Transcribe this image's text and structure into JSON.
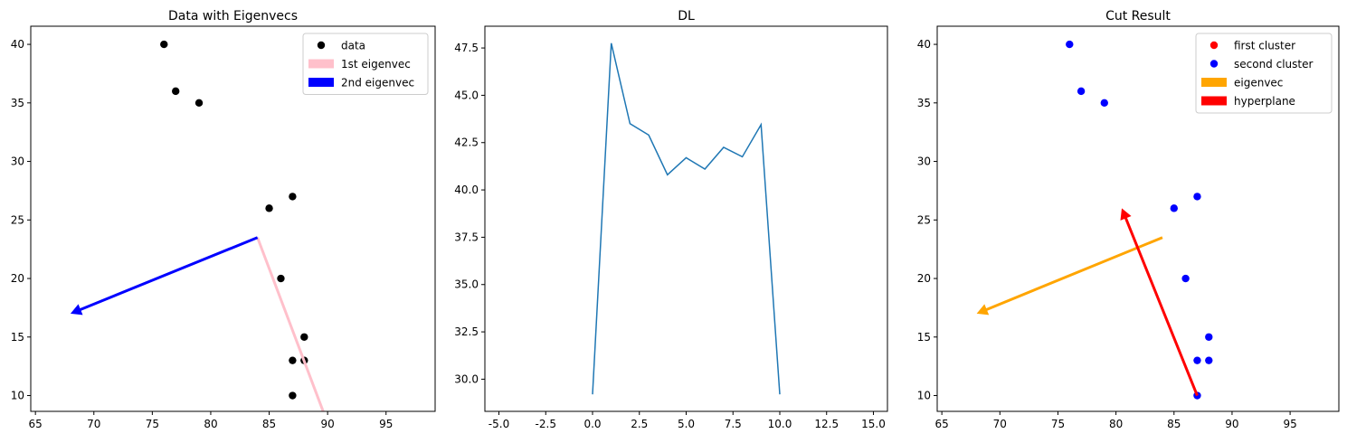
{
  "chart_data": [
    {
      "type": "scatter",
      "title": "Data with Eigenvecs",
      "xlim": [
        64.6,
        99.2
      ],
      "ylim": [
        8.65,
        41.55
      ],
      "xticks": [
        65,
        70,
        75,
        80,
        85,
        90,
        95
      ],
      "yticks": [
        10,
        15,
        20,
        25,
        30,
        35,
        40
      ],
      "legend_loc": "upper right",
      "series": [
        {
          "name": "data",
          "kind": "points",
          "color": "#000000",
          "points": [
            [
              76,
              40
            ],
            [
              77,
              36
            ],
            [
              79,
              35
            ],
            [
              85,
              26
            ],
            [
              87,
              27
            ],
            [
              86,
              20
            ],
            [
              88,
              15
            ],
            [
              87,
              13
            ],
            [
              88,
              13
            ],
            [
              87,
              10
            ]
          ]
        },
        {
          "name": "1st eigenvec",
          "kind": "arrow",
          "color": "#ffc0cb",
          "from": [
            84,
            23.5
          ],
          "to": [
            91,
            5
          ]
        },
        {
          "name": "2nd eigenvec",
          "kind": "arrow",
          "color": "#0000ff",
          "from": [
            84,
            23.5
          ],
          "to": [
            68,
            17
          ]
        }
      ]
    },
    {
      "type": "line",
      "title": "DL",
      "xlim": [
        -5.75,
        15.75
      ],
      "ylim": [
        28.3,
        48.65
      ],
      "xticks": [
        -5.0,
        -2.5,
        0.0,
        2.5,
        5.0,
        7.5,
        10.0,
        12.5,
        15.0
      ],
      "yticks": [
        30.0,
        32.5,
        35.0,
        37.5,
        40.0,
        42.5,
        45.0,
        47.5
      ],
      "tick_format": 1,
      "series": [
        {
          "name": "",
          "kind": "line",
          "color": "#1f77b4",
          "x": [
            0,
            1,
            2,
            3,
            4,
            5,
            6,
            7,
            8,
            9,
            10
          ],
          "y": [
            29.2,
            47.75,
            43.5,
            42.9,
            40.8,
            41.7,
            41.1,
            42.25,
            41.75,
            43.45,
            29.2
          ]
        }
      ]
    },
    {
      "type": "scatter",
      "title": "Cut Result",
      "xlim": [
        64.6,
        99.2
      ],
      "ylim": [
        8.65,
        41.55
      ],
      "xticks": [
        65,
        70,
        75,
        80,
        85,
        90,
        95
      ],
      "yticks": [
        10,
        15,
        20,
        25,
        30,
        35,
        40
      ],
      "legend_loc": "upper right",
      "series": [
        {
          "name": "first cluster",
          "kind": "points",
          "color": "#ff0000",
          "points": []
        },
        {
          "name": "second cluster",
          "kind": "points",
          "color": "#0000ff",
          "points": [
            [
              76,
              40
            ],
            [
              77,
              36
            ],
            [
              79,
              35
            ],
            [
              85,
              26
            ],
            [
              87,
              27
            ],
            [
              86,
              20
            ],
            [
              88,
              15
            ],
            [
              87,
              13
            ],
            [
              88,
              13
            ],
            [
              87,
              10
            ]
          ]
        },
        {
          "name": "eigenvec",
          "kind": "arrow",
          "color": "#ffa500",
          "from": [
            84,
            23.5
          ],
          "to": [
            68,
            17
          ]
        },
        {
          "name": "hyperplane",
          "kind": "arrow",
          "color": "#ff0000",
          "from": [
            87,
            10
          ],
          "to": [
            80.5,
            26
          ]
        }
      ]
    }
  ]
}
